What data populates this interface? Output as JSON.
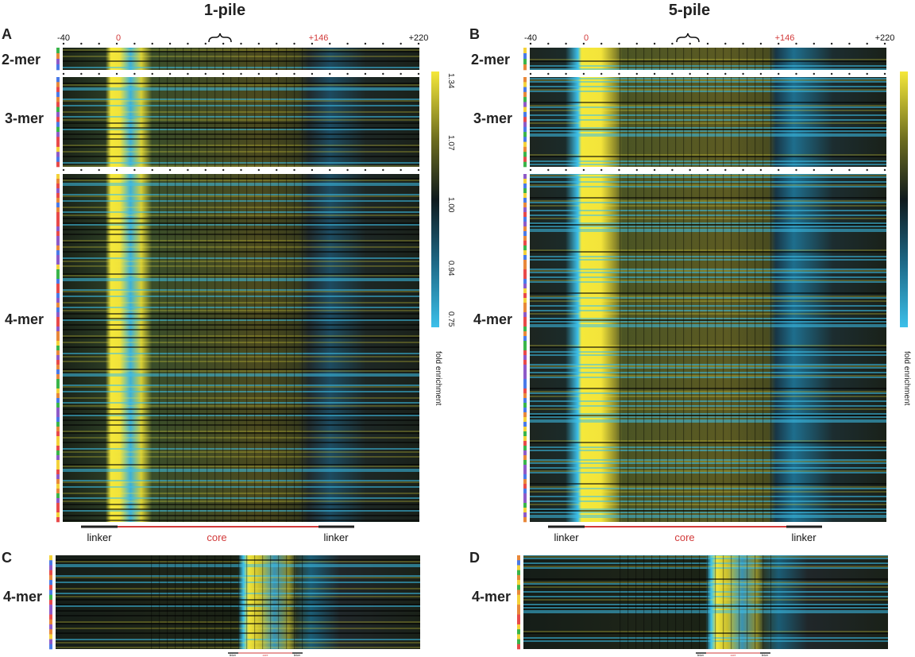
{
  "figure": {
    "titles": [
      "1-pile",
      "5-pile"
    ],
    "panel_letters": [
      "A",
      "B",
      "C",
      "D"
    ],
    "kmer_labels": [
      "2-mer",
      "3-mer",
      "4-mer"
    ],
    "segment_labels": [
      "linker",
      "core",
      "linker"
    ],
    "colorbar": {
      "label": "fold enrichment",
      "ticks": [
        "1.34",
        "1.07",
        "1.00",
        "0.94",
        "0.75"
      ],
      "colors": [
        "#f5e83a",
        "#6b6b1e",
        "#0f1a1d",
        "#1d6a88",
        "#3cc0ea"
      ]
    },
    "colors": {
      "linker": "#222222",
      "core": "#d23a3a"
    }
  },
  "chart_data": [
    {
      "type": "heatmap",
      "panel": "A",
      "title": "1-pile",
      "x_ticks": [
        "-40",
        "0",
        "+146",
        "+220"
      ],
      "x_range": [
        -40,
        220
      ],
      "xlabel": "",
      "rows": [
        "2-mer",
        "3-mer",
        "4-mer"
      ],
      "segments": [
        "linker",
        "core",
        "linker"
      ],
      "colorbar_range": [
        0.75,
        1.34
      ]
    },
    {
      "type": "heatmap",
      "panel": "B",
      "title": "5-pile",
      "x_ticks": [
        "-40",
        "0",
        "+146",
        "+220"
      ],
      "x_range": [
        -40,
        220
      ],
      "xlabel": "",
      "rows": [
        "2-mer",
        "3-mer",
        "4-mer"
      ],
      "segments": [
        "linker",
        "core",
        "linker"
      ],
      "colorbar_range": [
        0.75,
        1.34
      ]
    },
    {
      "type": "heatmap",
      "panel": "C",
      "rows": [
        "4-mer"
      ],
      "segments": [
        "linker",
        "core",
        "linker"
      ]
    },
    {
      "type": "heatmap",
      "panel": "D",
      "rows": [
        "4-mer"
      ],
      "segments": [
        "linker",
        "core",
        "linker"
      ]
    }
  ]
}
